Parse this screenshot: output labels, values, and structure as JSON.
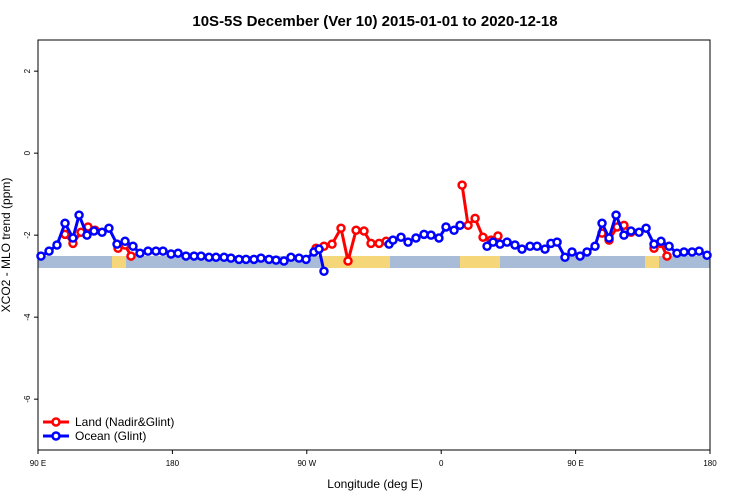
{
  "chart_data": {
    "type": "line",
    "title": "10S-5S December (Ver 10)   2015-01-01 to 2020-12-18",
    "xlabel": "Longitude (deg E)",
    "ylabel": "XCO2 - MLO trend (ppm)",
    "xlim": [
      90,
      540
    ],
    "xticks": [
      {
        "value": 90,
        "label": "90 E"
      },
      180,
      {
        "value": 270,
        "label": "90 W"
      },
      {
        "value": 360,
        "label": "0"
      },
      {
        "value": 450,
        "label": "90 E"
      },
      {
        "value": 540,
        "label": "180"
      }
    ],
    "ylim": [
      -7.24,
      2.76
    ],
    "yticks": [
      -6,
      -4,
      -2,
      0,
      2
    ],
    "legend": "bottom-left",
    "series": [
      {
        "name": "Land (Nadir&Glint)",
        "color": "#ff0000",
        "x": [
          108.1,
          113.4,
          118.8,
          123.5,
          128.2,
          135,
          143.6,
          148.3,
          152.3,
          230,
          276.2,
          281.5,
          286.9,
          292.9,
          297.6,
          303,
          308.3,
          313,
          318.4,
          323.1,
          340,
          374,
          378,
          382.7,
          388,
          393.4,
          398,
          430,
          467.7,
          472.4,
          477.8,
          482.4,
          487.1,
          495,
          502.5,
          507.2,
          511.2
        ],
        "values": [
          -1.98,
          -2.2,
          -1.93,
          -1.8,
          -1.88,
          null,
          -2.32,
          -2.24,
          -2.51,
          null,
          -2.32,
          -2.27,
          -2.22,
          -1.83,
          -2.63,
          -1.88,
          -1.9,
          -2.2,
          -2.2,
          -2.15,
          null,
          -0.78,
          -1.76,
          -1.59,
          -2.05,
          -2.12,
          -2.02,
          null,
          -1.95,
          -2.12,
          -1.8,
          -1.76,
          -1.93,
          null,
          -2.32,
          -2.2,
          -2.51
        ]
      },
      {
        "name": "Ocean (Glint)",
        "color": "#0000ff",
        "x": [
          92,
          97.4,
          102.7,
          108.1,
          113.4,
          117.5,
          122.8,
          127.5,
          132.9,
          137.5,
          142.9,
          148.3,
          153.6,
          158.3,
          163.7,
          169,
          173.7,
          179.1,
          183.8,
          189.1,
          194.5,
          199.2,
          204.5,
          209.2,
          214.6,
          219.2,
          224.6,
          229.3,
          234.6,
          239.3,
          244.7,
          249.4,
          254.7,
          259.4,
          264.8,
          269.5,
          274.8,
          278.2,
          281.5,
          300,
          325.1,
          327.7,
          333.1,
          337.8,
          343.1,
          348.5,
          353.2,
          358.5,
          363.2,
          368.6,
          372.6,
          380,
          390.7,
          394.7,
          399.4,
          404.1,
          409.4,
          414.1,
          419.5,
          424.2,
          429.5,
          433.5,
          437.6,
          442.9,
          447.6,
          453,
          457.6,
          463,
          467.7,
          472.4,
          477.1,
          482.4,
          487.1,
          492.5,
          497.2,
          502.5,
          507.2,
          512.6,
          517.9,
          522.6,
          528,
          532.7,
          538
        ],
        "values": [
          -2.51,
          -2.39,
          -2.24,
          -1.71,
          -2.07,
          -1.51,
          -2.0,
          -1.9,
          -1.93,
          -1.83,
          -2.22,
          -2.15,
          -2.27,
          -2.44,
          -2.39,
          -2.39,
          -2.39,
          -2.46,
          -2.44,
          -2.51,
          -2.51,
          -2.51,
          -2.54,
          -2.54,
          -2.54,
          -2.56,
          -2.59,
          -2.59,
          -2.59,
          -2.56,
          -2.59,
          -2.61,
          -2.63,
          -2.54,
          -2.56,
          -2.59,
          -2.41,
          -2.34,
          -2.88,
          null,
          -2.22,
          -2.12,
          -2.05,
          -2.17,
          -2.07,
          -1.98,
          -2.0,
          -2.07,
          -1.8,
          -1.88,
          -1.76,
          null,
          -2.27,
          -2.17,
          -2.22,
          -2.17,
          -2.24,
          -2.34,
          -2.27,
          -2.27,
          -2.34,
          -2.2,
          -2.17,
          -2.54,
          -2.41,
          -2.51,
          -2.41,
          -2.27,
          -1.71,
          -2.07,
          -1.51,
          -2.0,
          -1.9,
          -1.93,
          -1.83,
          -2.22,
          -2.15,
          -2.27,
          -2.44,
          -2.41,
          -2.41,
          -2.39,
          -2.49
        ]
      }
    ]
  }
}
